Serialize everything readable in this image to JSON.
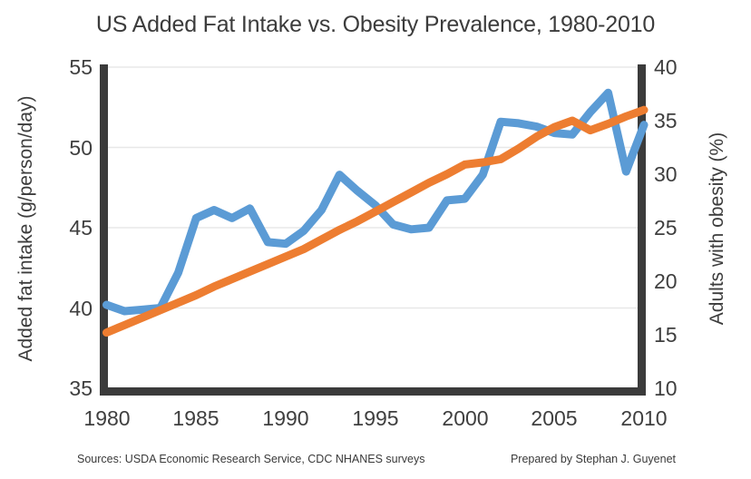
{
  "title": "US Added Fat Intake vs. Obesity Prevalence, 1980-2010",
  "footer": {
    "sources": "Sources: USDA Economic Research Service, CDC NHANES surveys",
    "credit": "Prepared by Stephan J. Guyenet"
  },
  "colors": {
    "fat_line": "#5B9BD5",
    "obesity_line": "#ED7D31",
    "axis_bar": "#3B3B3B",
    "gridline": "#E8E8E8",
    "text": "#3F3F3F",
    "background": "#FFFFFF"
  },
  "chart_data": {
    "type": "line",
    "title": "US Added Fat Intake vs. Obesity Prevalence, 1980-2010",
    "x": [
      1980,
      1981,
      1982,
      1983,
      1984,
      1985,
      1986,
      1987,
      1988,
      1989,
      1990,
      1991,
      1992,
      1993,
      1994,
      1995,
      1996,
      1997,
      1998,
      1999,
      2000,
      2001,
      2002,
      2003,
      2004,
      2005,
      2006,
      2007,
      2008,
      2009,
      2010
    ],
    "x_ticks": [
      1980,
      1985,
      1990,
      1995,
      2000,
      2005,
      2010
    ],
    "series": [
      {
        "name": "Added fat intake",
        "axis": "left",
        "color": "#5B9BD5",
        "values": [
          40.2,
          39.8,
          39.9,
          40.0,
          42.2,
          45.6,
          46.1,
          45.6,
          46.2,
          44.1,
          44.0,
          44.8,
          46.1,
          48.3,
          47.3,
          46.4,
          45.2,
          44.9,
          45.0,
          46.7,
          46.8,
          48.3,
          51.6,
          51.5,
          51.3,
          50.9,
          50.8,
          52.2,
          53.4,
          48.5,
          51.4
        ]
      },
      {
        "name": "Adults with obesity",
        "axis": "right",
        "color": "#ED7D31",
        "values": [
          15.2,
          15.9,
          16.6,
          17.3,
          18.0,
          18.7,
          19.5,
          20.2,
          20.9,
          21.6,
          22.3,
          23.0,
          23.9,
          24.8,
          25.6,
          26.5,
          27.4,
          28.3,
          29.2,
          30.0,
          30.9,
          31.1,
          31.4,
          32.4,
          33.5,
          34.4,
          35.0,
          34.1,
          34.7,
          35.4,
          36.0
        ]
      }
    ],
    "left_axis": {
      "label": "Added fat intake (g/person/day)",
      "min": 35,
      "max": 55,
      "ticks": [
        55,
        50,
        45,
        40,
        35
      ]
    },
    "right_axis": {
      "label": "Adults with obesity (%)",
      "min": 10,
      "max": 40,
      "ticks": [
        40,
        35,
        30,
        25,
        20,
        15,
        10
      ]
    },
    "grid": true,
    "legend": "none",
    "line_width": 9
  }
}
